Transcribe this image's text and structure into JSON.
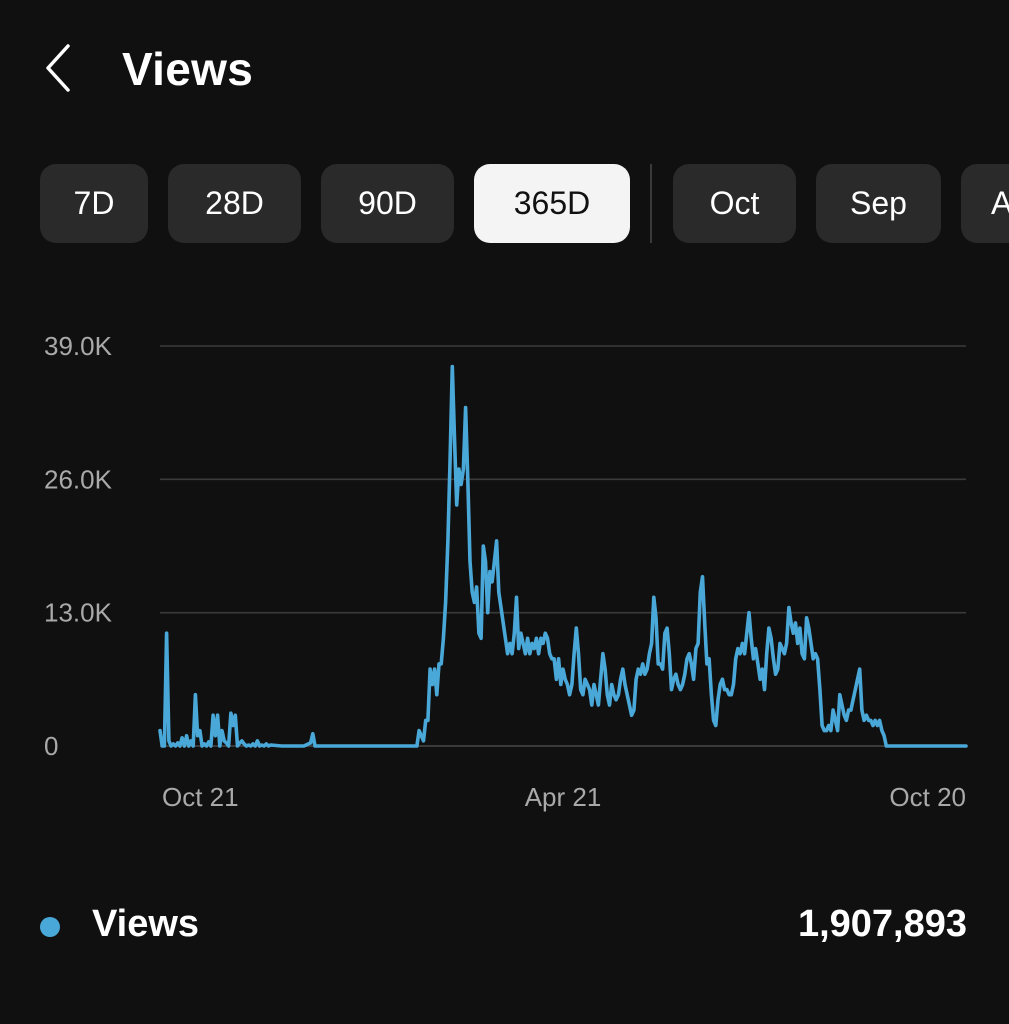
{
  "header": {
    "title": "Views",
    "back_icon": "chevron-left-icon"
  },
  "periods": [
    {
      "label": "7D",
      "selected": false
    },
    {
      "label": "28D",
      "selected": false
    },
    {
      "label": "90D",
      "selected": false
    },
    {
      "label": "365D",
      "selected": true
    },
    {
      "label": "Oct",
      "selected": false
    },
    {
      "label": "Sep",
      "selected": false
    },
    {
      "label": "A",
      "selected": false
    }
  ],
  "colors": {
    "background": "#101010",
    "chip": "#2a2a2a",
    "chip_selected": "#f4f4f4",
    "line": "#4aa8d8",
    "grid": "#3a3a3a"
  },
  "chart_data": {
    "type": "line",
    "ylim": [
      0,
      39000
    ],
    "ytick_labels": [
      "0",
      "13.0K",
      "26.0K",
      "39.0K"
    ],
    "ytick_values": [
      0,
      13000,
      26000,
      39000
    ],
    "xtick_labels": [
      "Oct 21",
      "Apr 21",
      "Oct 20"
    ],
    "xtick_days": [
      0,
      182,
      364
    ],
    "grid": true,
    "series": [
      {
        "name": "Views",
        "color": "#4aa8d8",
        "points": [
          [
            0,
            1500
          ],
          [
            1,
            0
          ],
          [
            2,
            0
          ],
          [
            3,
            11000
          ],
          [
            4,
            500
          ],
          [
            5,
            0
          ],
          [
            6,
            200
          ],
          [
            7,
            0
          ],
          [
            8,
            300
          ],
          [
            9,
            0
          ],
          [
            10,
            800
          ],
          [
            11,
            0
          ],
          [
            12,
            1000
          ],
          [
            13,
            0
          ],
          [
            14,
            500
          ],
          [
            15,
            0
          ],
          [
            16,
            5000
          ],
          [
            17,
            1000
          ],
          [
            18,
            1500
          ],
          [
            19,
            0
          ],
          [
            20,
            200
          ],
          [
            21,
            0
          ],
          [
            22,
            400
          ],
          [
            23,
            0
          ],
          [
            24,
            3000
          ],
          [
            25,
            1000
          ],
          [
            26,
            3000
          ],
          [
            27,
            0
          ],
          [
            28,
            1500
          ],
          [
            29,
            500
          ],
          [
            30,
            300
          ],
          [
            31,
            0
          ],
          [
            32,
            3200
          ],
          [
            33,
            2000
          ],
          [
            34,
            3000
          ],
          [
            35,
            0
          ],
          [
            36,
            300
          ],
          [
            37,
            500
          ],
          [
            38,
            200
          ],
          [
            39,
            0
          ],
          [
            40,
            100
          ],
          [
            41,
            0
          ],
          [
            42,
            200
          ],
          [
            43,
            0
          ],
          [
            44,
            500
          ],
          [
            45,
            0
          ],
          [
            46,
            100
          ],
          [
            47,
            0
          ],
          [
            48,
            200
          ],
          [
            49,
            0
          ],
          [
            50,
            100
          ],
          [
            55,
            0
          ],
          [
            65,
            0
          ],
          [
            68,
            300
          ],
          [
            69,
            1200
          ],
          [
            70,
            0
          ],
          [
            80,
            0
          ],
          [
            100,
            0
          ],
          [
            110,
            0
          ],
          [
            116,
            0
          ],
          [
            117,
            1500
          ],
          [
            118,
            1000
          ],
          [
            119,
            500
          ],
          [
            120,
            2500
          ],
          [
            121,
            2500
          ],
          [
            122,
            7500
          ],
          [
            123,
            6000
          ],
          [
            124,
            7500
          ],
          [
            125,
            5000
          ],
          [
            126,
            8000
          ],
          [
            127,
            8000
          ],
          [
            128,
            10500
          ],
          [
            129,
            14000
          ],
          [
            130,
            20000
          ],
          [
            131,
            28000
          ],
          [
            132,
            37000
          ],
          [
            133,
            30000
          ],
          [
            134,
            23500
          ],
          [
            135,
            27000
          ],
          [
            136,
            25500
          ],
          [
            137,
            27000
          ],
          [
            138,
            33000
          ],
          [
            139,
            26000
          ],
          [
            140,
            18000
          ],
          [
            141,
            15000
          ],
          [
            142,
            14000
          ],
          [
            143,
            15500
          ],
          [
            144,
            11000
          ],
          [
            145,
            10500
          ],
          [
            146,
            19500
          ],
          [
            147,
            18000
          ],
          [
            148,
            13000
          ],
          [
            149,
            17000
          ],
          [
            150,
            16000
          ],
          [
            151,
            18000
          ],
          [
            152,
            20000
          ],
          [
            153,
            15000
          ],
          [
            154,
            13500
          ],
          [
            155,
            12000
          ],
          [
            156,
            10500
          ],
          [
            157,
            9000
          ],
          [
            158,
            10000
          ],
          [
            159,
            9000
          ],
          [
            160,
            11000
          ],
          [
            161,
            14500
          ],
          [
            162,
            9500
          ],
          [
            163,
            11000
          ],
          [
            164,
            10000
          ],
          [
            165,
            9000
          ],
          [
            166,
            10500
          ],
          [
            167,
            9000
          ],
          [
            168,
            10000
          ],
          [
            169,
            9500
          ],
          [
            170,
            10500
          ],
          [
            171,
            9000
          ],
          [
            172,
            10500
          ],
          [
            173,
            10000
          ],
          [
            174,
            11000
          ],
          [
            175,
            10500
          ],
          [
            176,
            9000
          ],
          [
            177,
            8500
          ],
          [
            178,
            8500
          ],
          [
            179,
            6500
          ],
          [
            180,
            8500
          ],
          [
            181,
            6000
          ],
          [
            182,
            7500
          ],
          [
            183,
            6500
          ],
          [
            184,
            6000
          ],
          [
            185,
            5000
          ],
          [
            186,
            6000
          ],
          [
            187,
            9000
          ],
          [
            188,
            11500
          ],
          [
            189,
            9000
          ],
          [
            190,
            5500
          ],
          [
            191,
            5000
          ],
          [
            192,
            6500
          ],
          [
            193,
            6000
          ],
          [
            194,
            5500
          ],
          [
            195,
            4000
          ],
          [
            196,
            6000
          ],
          [
            197,
            5000
          ],
          [
            198,
            4000
          ],
          [
            199,
            6500
          ],
          [
            200,
            9000
          ],
          [
            201,
            7500
          ],
          [
            202,
            5000
          ],
          [
            203,
            4000
          ],
          [
            204,
            6000
          ],
          [
            205,
            5000
          ],
          [
            206,
            4500
          ],
          [
            207,
            5000
          ],
          [
            208,
            6500
          ],
          [
            209,
            7500
          ],
          [
            210,
            6000
          ],
          [
            211,
            5000
          ],
          [
            212,
            4000
          ],
          [
            213,
            3000
          ],
          [
            214,
            3500
          ],
          [
            215,
            6500
          ],
          [
            216,
            7500
          ],
          [
            217,
            7000
          ],
          [
            218,
            8000
          ],
          [
            219,
            7000
          ],
          [
            220,
            7500
          ],
          [
            221,
            9000
          ],
          [
            222,
            10000
          ],
          [
            223,
            14500
          ],
          [
            224,
            12500
          ],
          [
            225,
            8000
          ],
          [
            226,
            8000
          ],
          [
            227,
            7500
          ],
          [
            228,
            11000
          ],
          [
            229,
            11500
          ],
          [
            230,
            9000
          ],
          [
            231,
            5500
          ],
          [
            232,
            6500
          ],
          [
            233,
            7000
          ],
          [
            234,
            6000
          ],
          [
            235,
            5500
          ],
          [
            236,
            6000
          ],
          [
            237,
            7000
          ],
          [
            238,
            8500
          ],
          [
            239,
            9000
          ],
          [
            240,
            8000
          ],
          [
            241,
            6500
          ],
          [
            242,
            9500
          ],
          [
            243,
            10000
          ],
          [
            244,
            15000
          ],
          [
            245,
            16500
          ],
          [
            246,
            12000
          ],
          [
            247,
            8000
          ],
          [
            248,
            8500
          ],
          [
            249,
            5000
          ],
          [
            250,
            2500
          ],
          [
            251,
            2000
          ],
          [
            252,
            4500
          ],
          [
            253,
            6000
          ],
          [
            254,
            6500
          ],
          [
            255,
            5500
          ],
          [
            256,
            5500
          ],
          [
            257,
            5000
          ],
          [
            258,
            5000
          ],
          [
            259,
            6000
          ],
          [
            260,
            8500
          ],
          [
            261,
            9500
          ],
          [
            262,
            9000
          ],
          [
            263,
            10000
          ],
          [
            264,
            9000
          ],
          [
            265,
            11000
          ],
          [
            266,
            13000
          ],
          [
            267,
            10500
          ],
          [
            268,
            8500
          ],
          [
            269,
            9500
          ],
          [
            270,
            8000
          ],
          [
            271,
            6500
          ],
          [
            272,
            7500
          ],
          [
            273,
            5500
          ],
          [
            274,
            9000
          ],
          [
            275,
            11500
          ],
          [
            276,
            10500
          ],
          [
            277,
            8500
          ],
          [
            278,
            7000
          ],
          [
            279,
            7500
          ],
          [
            280,
            10000
          ],
          [
            281,
            9500
          ],
          [
            282,
            9000
          ],
          [
            283,
            10000
          ],
          [
            284,
            13500
          ],
          [
            285,
            12000
          ],
          [
            286,
            11000
          ],
          [
            287,
            12000
          ],
          [
            288,
            10000
          ],
          [
            289,
            11500
          ],
          [
            290,
            9000
          ],
          [
            291,
            8500
          ],
          [
            292,
            12500
          ],
          [
            293,
            11500
          ],
          [
            294,
            10000
          ],
          [
            295,
            8500
          ],
          [
            296,
            9000
          ],
          [
            297,
            8500
          ],
          [
            298,
            5500
          ],
          [
            299,
            2000
          ],
          [
            300,
            1500
          ],
          [
            301,
            1500
          ],
          [
            302,
            2000
          ],
          [
            303,
            1500
          ],
          [
            304,
            3500
          ],
          [
            305,
            2500
          ],
          [
            306,
            1500
          ],
          [
            307,
            5000
          ],
          [
            308,
            4000
          ],
          [
            309,
            3000
          ],
          [
            310,
            2500
          ],
          [
            311,
            3500
          ],
          [
            312,
            3500
          ],
          [
            313,
            4500
          ],
          [
            314,
            5500
          ],
          [
            315,
            6500
          ],
          [
            316,
            7500
          ],
          [
            317,
            3500
          ],
          [
            318,
            2500
          ],
          [
            319,
            3000
          ],
          [
            320,
            2500
          ],
          [
            321,
            2500
          ],
          [
            322,
            2000
          ],
          [
            323,
            2500
          ],
          [
            324,
            2000
          ],
          [
            325,
            2500
          ],
          [
            326,
            1500
          ],
          [
            327,
            1000
          ],
          [
            328,
            0
          ],
          [
            330,
            0
          ],
          [
            345,
            0
          ],
          [
            364,
            0
          ]
        ]
      }
    ]
  },
  "legend": {
    "label": "Views",
    "total": "1,907,893"
  }
}
